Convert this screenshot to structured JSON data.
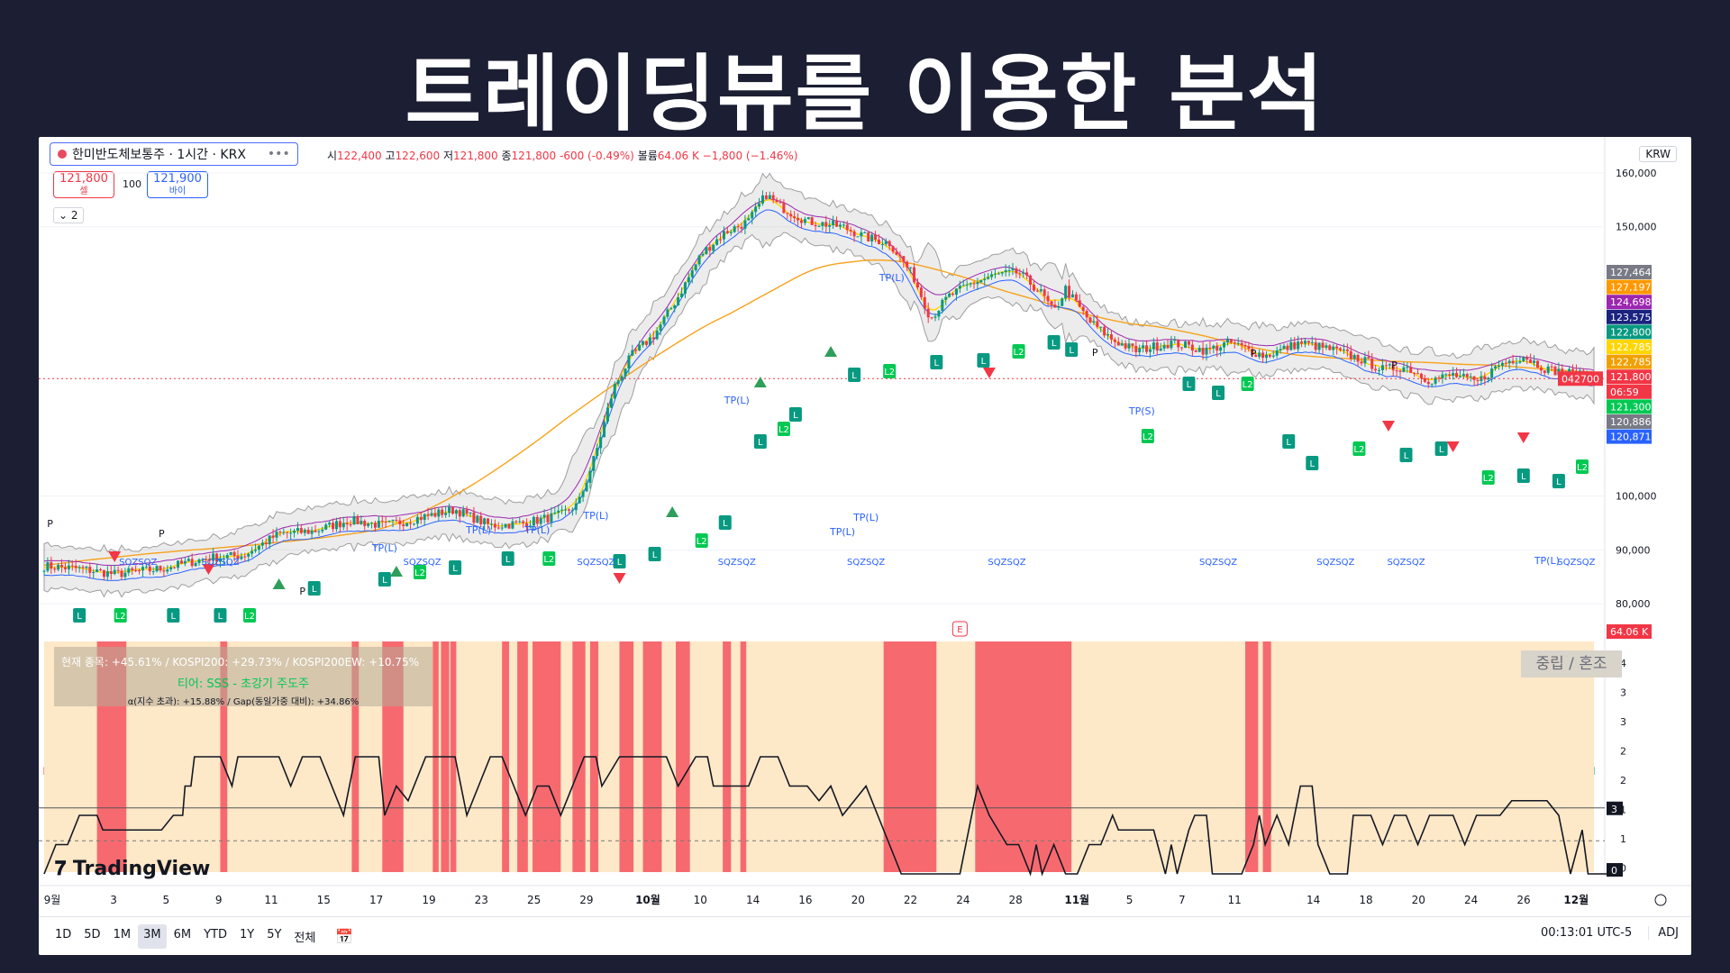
{
  "headline": "트레이딩뷰를 이용한 분석",
  "symbol": {
    "name": "한미반도체보통주 · 1시간 · KRX",
    "more": "•••"
  },
  "ohlc": {
    "o_label": "시",
    "o": "122,400",
    "h_label": "고",
    "h": "122,600",
    "l_label": "저",
    "l": "121,800",
    "c_label": "종",
    "c": "121,800",
    "chg": "-600 (-0.49%)",
    "vol_label": "볼륨",
    "vol": "64.06 K",
    "vol_chg": "−1,800 (−1.46%)"
  },
  "trade": {
    "sell_price": "121,800",
    "sell_label": "셀",
    "qty": "100",
    "buy_price": "121,900",
    "buy_label": "바이",
    "collapse": "⌄ 2"
  },
  "currency": "KRW",
  "colors": {
    "up": "#089981",
    "down": "#f23645",
    "bb": "#9e9e9e",
    "ma_long": "#f7a21b",
    "ema": "#ffd600",
    "ma_mid": "#9c27b0",
    "ma_blue": "#2962ff",
    "regime_bg": "#fde8c8",
    "regime_band": "#f5535f"
  },
  "price_axis": {
    "ticks": [
      "160,000",
      "150,000",
      "100,000",
      "90,000",
      "80,000"
    ]
  },
  "price_badges": [
    {
      "label": "127,464",
      "color": "#787b86"
    },
    {
      "label": "127,197",
      "color": "#ff9800"
    },
    {
      "label": "124,698",
      "color": "#9c27b0"
    },
    {
      "label": "123,575",
      "color": "#1a237e"
    },
    {
      "label": "122,800",
      "color": "#089981"
    },
    {
      "label": "122,785",
      "color": "#ffd600"
    },
    {
      "label": "122,785",
      "color": "#f0a000"
    },
    {
      "label": "121,800",
      "color": "#f23645"
    },
    {
      "label": "06:59",
      "color": "#f23645"
    },
    {
      "label": "121,300",
      "color": "#00c853"
    },
    {
      "label": "120,886",
      "color": "#787b86"
    },
    {
      "label": "120,871",
      "color": "#2962ff"
    }
  ],
  "last_code": "042700",
  "volume_badge": "64.06 K",
  "signal_labels": {
    "tp_long": "TP(L)",
    "tp_short": "TP(S)",
    "long": "L",
    "long2": "L2",
    "pivot": "P",
    "sqz": "SQZ",
    "earnings": "E"
  },
  "indicator": {
    "status_line1": "현재 종목: +45.61% / KOSPI200: +29.73% / KOSPI200EW: +10.75%",
    "status_line2": "티어: SSS - 초강기 주도주",
    "status_line3": "α(지수 초과): +15.88% / Gap(동일가중 대비): +34.86%",
    "regime": "중립 / 혼조",
    "axis": [
      "4",
      "3",
      "3",
      "2",
      "2",
      "1",
      "1",
      "0"
    ],
    "badge_high": "3",
    "badge_low": "0"
  },
  "time_axis": [
    "9월",
    "3",
    "5",
    "9",
    "11",
    "15",
    "17",
    "19",
    "23",
    "25",
    "29",
    "10월",
    "10",
    "14",
    "16",
    "20",
    "22",
    "24",
    "28",
    "11월",
    "5",
    "7",
    "11",
    "14",
    "18",
    "20",
    "24",
    "26",
    "12월"
  ],
  "ranges": [
    "1D",
    "5D",
    "1M",
    "3M",
    "6M",
    "YTD",
    "1Y",
    "5Y",
    "전체"
  ],
  "active_range": "3M",
  "clock": "00:13:01 UTC-5",
  "adj": "ADJ",
  "watermark": "TradingView",
  "chart_data": {
    "type": "candlestick",
    "ylim": [
      75000,
      163000
    ],
    "close_anchors": [
      [
        0,
        87000
      ],
      [
        30,
        86500
      ],
      [
        60,
        85500
      ],
      [
        100,
        86500
      ],
      [
        140,
        88500
      ],
      [
        170,
        89000
      ],
      [
        200,
        93000
      ],
      [
        230,
        93500
      ],
      [
        260,
        95500
      ],
      [
        290,
        94500
      ],
      [
        320,
        96000
      ],
      [
        350,
        97500
      ],
      [
        380,
        94500
      ],
      [
        410,
        95000
      ],
      [
        440,
        96500
      ],
      [
        455,
        98500
      ],
      [
        470,
        108000
      ],
      [
        485,
        120000
      ],
      [
        500,
        126000
      ],
      [
        520,
        130000
      ],
      [
        540,
        137000
      ],
      [
        560,
        145000
      ],
      [
        580,
        149000
      ],
      [
        600,
        151000
      ],
      [
        615,
        156000
      ],
      [
        625,
        154000
      ],
      [
        650,
        151000
      ],
      [
        680,
        150000
      ],
      [
        700,
        148000
      ],
      [
        720,
        147000
      ],
      [
        740,
        141000
      ],
      [
        755,
        133000
      ],
      [
        770,
        137000
      ],
      [
        790,
        139500
      ],
      [
        810,
        141000
      ],
      [
        830,
        141500
      ],
      [
        850,
        137500
      ],
      [
        860,
        134000
      ],
      [
        870,
        138500
      ],
      [
        890,
        132500
      ],
      [
        910,
        129000
      ],
      [
        930,
        127000
      ],
      [
        960,
        128500
      ],
      [
        990,
        127000
      ],
      [
        1010,
        128500
      ],
      [
        1040,
        126000
      ],
      [
        1070,
        128500
      ],
      [
        1100,
        127000
      ],
      [
        1120,
        125500
      ],
      [
        1140,
        123500
      ],
      [
        1160,
        124000
      ],
      [
        1180,
        121500
      ],
      [
        1200,
        122500
      ],
      [
        1220,
        121000
      ],
      [
        1240,
        124500
      ],
      [
        1260,
        126000
      ],
      [
        1280,
        123500
      ],
      [
        1300,
        122800
      ],
      [
        1320,
        121800
      ]
    ],
    "regime_path": [
      [
        0,
        0
      ],
      [
        10,
        1
      ],
      [
        20,
        1
      ],
      [
        30,
        2
      ],
      [
        40,
        2
      ],
      [
        45,
        2
      ],
      [
        50,
        1.5
      ],
      [
        90,
        1.5
      ],
      [
        100,
        1.5
      ],
      [
        110,
        2
      ],
      [
        118,
        2
      ],
      [
        120,
        3
      ],
      [
        125,
        3
      ],
      [
        128,
        4
      ],
      [
        150,
        4
      ],
      [
        160,
        3
      ],
      [
        165,
        4
      ],
      [
        180,
        4
      ],
      [
        200,
        4
      ],
      [
        210,
        3
      ],
      [
        220,
        4
      ],
      [
        235,
        4
      ],
      [
        245,
        3
      ],
      [
        255,
        2
      ],
      [
        260,
        3
      ],
      [
        265,
        4
      ],
      [
        285,
        4
      ],
      [
        290,
        2
      ],
      [
        300,
        3
      ],
      [
        310,
        2.5
      ],
      [
        325,
        4
      ],
      [
        350,
        4
      ],
      [
        360,
        2
      ],
      [
        370,
        3
      ],
      [
        380,
        4
      ],
      [
        390,
        4
      ],
      [
        400,
        3
      ],
      [
        410,
        2
      ],
      [
        420,
        3
      ],
      [
        430,
        3
      ],
      [
        440,
        2
      ],
      [
        450,
        3
      ],
      [
        460,
        4
      ],
      [
        470,
        4
      ],
      [
        475,
        3
      ],
      [
        490,
        4
      ],
      [
        520,
        4
      ],
      [
        530,
        4
      ],
      [
        540,
        3
      ],
      [
        555,
        4
      ],
      [
        565,
        4
      ],
      [
        570,
        3
      ],
      [
        585,
        3
      ],
      [
        600,
        3
      ],
      [
        610,
        4
      ],
      [
        625,
        4
      ],
      [
        635,
        3
      ],
      [
        650,
        3
      ],
      [
        660,
        2.5
      ],
      [
        670,
        3
      ],
      [
        680,
        2
      ],
      [
        690,
        2.5
      ],
      [
        700,
        3
      ],
      [
        710,
        2
      ],
      [
        720,
        1
      ],
      [
        730,
        0
      ],
      [
        750,
        0
      ],
      [
        760,
        0
      ],
      [
        780,
        0
      ],
      [
        795,
        3
      ],
      [
        805,
        2
      ],
      [
        820,
        1
      ],
      [
        830,
        1
      ],
      [
        840,
        0
      ],
      [
        845,
        1
      ],
      [
        850,
        0
      ],
      [
        860,
        1
      ],
      [
        870,
        0
      ],
      [
        880,
        0
      ],
      [
        890,
        1
      ],
      [
        900,
        1
      ],
      [
        910,
        2
      ],
      [
        915,
        1.5
      ],
      [
        920,
        1.5
      ],
      [
        945,
        1.5
      ],
      [
        955,
        0
      ],
      [
        960,
        1
      ],
      [
        965,
        0
      ],
      [
        975,
        1.5
      ],
      [
        980,
        2
      ],
      [
        990,
        2
      ],
      [
        995,
        0
      ],
      [
        1020,
        0
      ],
      [
        1030,
        1
      ],
      [
        1035,
        2
      ],
      [
        1040,
        1
      ],
      [
        1050,
        2
      ],
      [
        1060,
        1
      ],
      [
        1070,
        3
      ],
      [
        1080,
        3
      ],
      [
        1085,
        1
      ],
      [
        1095,
        0
      ],
      [
        1110,
        0
      ],
      [
        1115,
        2
      ],
      [
        1130,
        2
      ],
      [
        1140,
        1
      ],
      [
        1150,
        2
      ],
      [
        1160,
        2
      ],
      [
        1170,
        1
      ],
      [
        1180,
        2
      ],
      [
        1200,
        2
      ],
      [
        1210,
        1
      ],
      [
        1220,
        2
      ],
      [
        1240,
        2
      ],
      [
        1250,
        2.5
      ],
      [
        1280,
        2.5
      ],
      [
        1290,
        2
      ],
      [
        1300,
        0
      ],
      [
        1310,
        1.5
      ],
      [
        1315,
        0
      ],
      [
        1340,
        0
      ]
    ],
    "regime_bands": [
      [
        45,
        70
      ],
      [
        150,
        156
      ],
      [
        262,
        268
      ],
      [
        288,
        306
      ],
      [
        331,
        336
      ],
      [
        338,
        345
      ],
      [
        346,
        351
      ],
      [
        390,
        396
      ],
      [
        403,
        412
      ],
      [
        416,
        440
      ],
      [
        450,
        461
      ],
      [
        465,
        472
      ],
      [
        490,
        502
      ],
      [
        510,
        526
      ],
      [
        538,
        550
      ],
      [
        578,
        585
      ],
      [
        593,
        598
      ],
      [
        715,
        760
      ],
      [
        793,
        875
      ],
      [
        1023,
        1034
      ],
      [
        1038,
        1045
      ]
    ]
  }
}
